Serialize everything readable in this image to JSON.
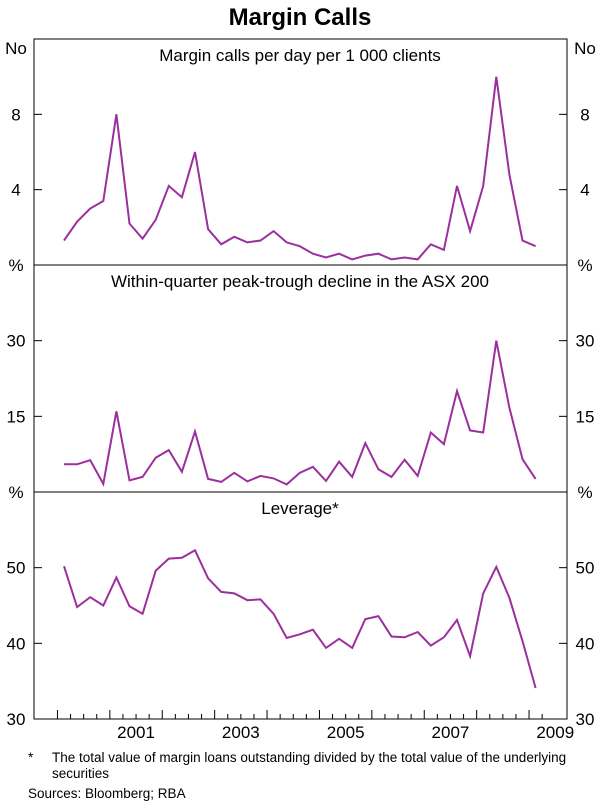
{
  "chart_data": {
    "type": "line",
    "title": "Margin Calls",
    "line_color": "#9b2f9e",
    "x_ticks": [
      "2001",
      "2003",
      "2005",
      "2007",
      "2009"
    ],
    "panels": [
      {
        "name": "Margin calls per day per 1 000 clients",
        "ylim": [
          0,
          12
        ],
        "y_ticks": [
          4,
          8
        ],
        "top_unit": "No",
        "bottom_unit": "%",
        "values": [
          1.3,
          2.3,
          3.0,
          3.4,
          8.0,
          2.2,
          1.4,
          2.4,
          4.2,
          3.6,
          6.0,
          1.9,
          1.1,
          1.5,
          1.2,
          1.3,
          1.8,
          1.2,
          1.0,
          0.6,
          0.4,
          0.6,
          0.3,
          0.5,
          0.6,
          0.3,
          0.4,
          0.3,
          1.1,
          0.8,
          4.2,
          1.8,
          4.2,
          10.0,
          4.8,
          1.3,
          1.0
        ]
      },
      {
        "name": "Within-quarter peak-trough decline in the ASX 200",
        "ylim": [
          0,
          45
        ],
        "y_ticks": [
          15,
          30
        ],
        "top_unit": "",
        "bottom_unit": "%",
        "values": [
          5.5,
          5.5,
          6.3,
          1.6,
          16.0,
          2.3,
          3.0,
          6.8,
          8.3,
          4.0,
          12.0,
          2.6,
          2.0,
          3.8,
          2.1,
          3.2,
          2.7,
          1.5,
          3.8,
          5.0,
          2.2,
          6.0,
          3.0,
          9.7,
          4.5,
          3.0,
          6.4,
          3.2,
          11.8,
          9.5,
          20.0,
          12.2,
          11.8,
          30.0,
          16.7,
          6.5,
          2.6
        ]
      },
      {
        "name": "Leverage*",
        "ylim": [
          30,
          60
        ],
        "y_ticks": [
          40,
          50
        ],
        "top_unit": "",
        "bottom_unit": "",
        "bottom_tick_label": "30",
        "values": [
          50.2,
          44.8,
          46.1,
          45.0,
          48.7,
          44.9,
          43.9,
          49.6,
          51.2,
          51.3,
          52.3,
          48.6,
          46.8,
          46.6,
          45.7,
          45.8,
          43.9,
          40.7,
          41.2,
          41.8,
          39.4,
          40.6,
          39.4,
          43.2,
          43.6,
          40.9,
          40.8,
          41.5,
          39.7,
          40.8,
          43.1,
          38.3,
          46.6,
          50.1,
          46.0,
          40.3,
          34.1
        ]
      }
    ]
  },
  "footnotes": {
    "mark": "*",
    "text": "The total value of margin loans outstanding divided by the total value of the underlying securities",
    "sources": "Sources: Bloomberg; RBA"
  }
}
